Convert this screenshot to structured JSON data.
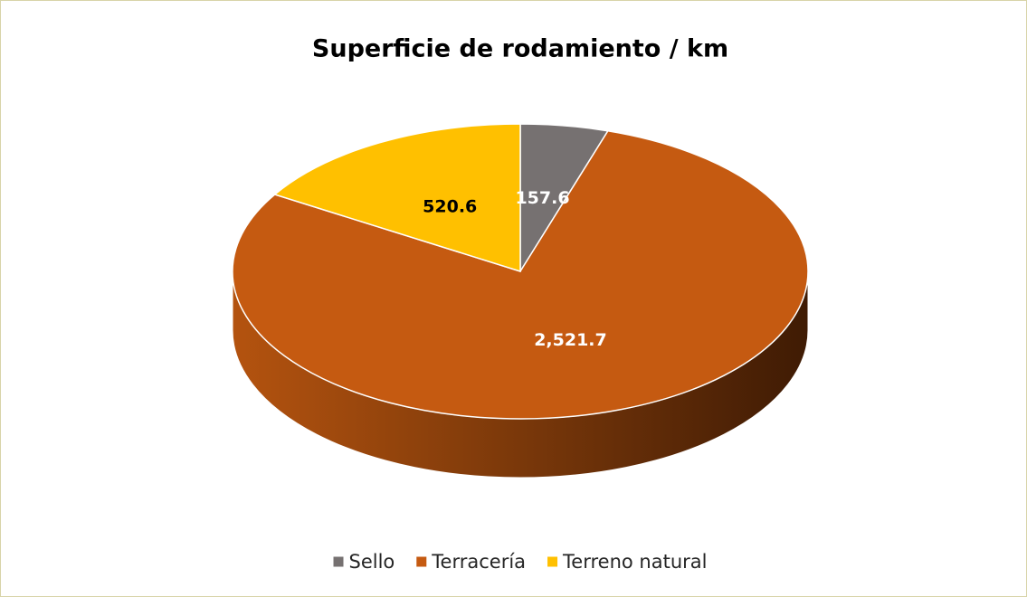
{
  "chart_data": {
    "type": "pie",
    "title": "Superficie de rodamiento / km",
    "categories": [
      "Sello",
      "Terracería",
      "Terreno natural"
    ],
    "values": [
      157.6,
      2521.7,
      520.6
    ],
    "value_labels": [
      "157.6",
      "2,521.7",
      "520.6"
    ],
    "colors": [
      "#767171",
      "#c55a11",
      "#ffc000"
    ],
    "label_colors": [
      "#ffffff",
      "#ffffff",
      "#000000"
    ],
    "legend": "bottom"
  }
}
